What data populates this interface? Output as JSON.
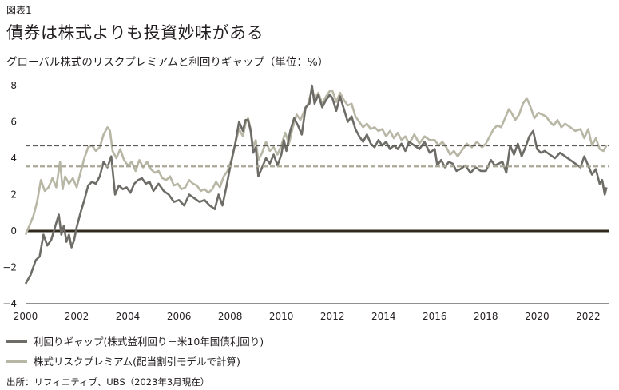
{
  "figure_label": "図表1",
  "title": "債券は株式よりも投資妙味がある",
  "subtitle": "グローバル株式のリスクプレミアムと利回りギャップ（単位：%）",
  "source": "出所：リフィニティブ、UBS（2023年3月現在）",
  "colors": {
    "gap": "#6e6c67",
    "erp": "#b8b6a4",
    "gap_avg": "#5e5c57",
    "erp_avg": "#a9a795",
    "zero": "#2f2a1c"
  },
  "chart_data": {
    "type": "line",
    "xlim": [
      2000,
      2022.8
    ],
    "ylim": [
      -4,
      8
    ],
    "x_ticks": [
      2000,
      2002,
      2004,
      2006,
      2008,
      2010,
      2012,
      2014,
      2016,
      2018,
      2020,
      2022
    ],
    "y_ticks": [
      -4,
      -2,
      0,
      2,
      4,
      6,
      8
    ],
    "y_tick_labels": [
      "−4",
      "−2",
      "0",
      "2",
      "4",
      "6",
      "8"
    ],
    "grid": false,
    "legend_position": "bottom-left",
    "reference_lines": [
      {
        "series": "利回りギャップ(株式益利回り－米10年国債利回り)",
        "value": 4.7,
        "style": "dashed"
      },
      {
        "series": "株式リスクプレミアム(配当割引モデルで計算)",
        "value": 3.55,
        "style": "dashed"
      },
      {
        "value": 0,
        "style": "solid"
      }
    ],
    "series": [
      {
        "name": "利回りギャップ(株式益利回り－米10年国債利回り)",
        "points": [
          [
            2000.0,
            -2.9
          ],
          [
            2000.2,
            -2.4
          ],
          [
            2000.4,
            -1.6
          ],
          [
            2000.55,
            -1.4
          ],
          [
            2000.7,
            -0.2
          ],
          [
            2000.85,
            -0.8
          ],
          [
            2001.0,
            -0.5
          ],
          [
            2001.15,
            0.2
          ],
          [
            2001.3,
            0.9
          ],
          [
            2001.4,
            -0.2
          ],
          [
            2001.5,
            0.3
          ],
          [
            2001.6,
            -0.6
          ],
          [
            2001.7,
            -0.2
          ],
          [
            2001.8,
            -0.9
          ],
          [
            2001.9,
            -0.5
          ],
          [
            2002.0,
            0.2
          ],
          [
            2002.15,
            1.0
          ],
          [
            2002.3,
            1.7
          ],
          [
            2002.45,
            2.5
          ],
          [
            2002.6,
            2.7
          ],
          [
            2002.75,
            2.6
          ],
          [
            2002.9,
            3.0
          ],
          [
            2003.05,
            3.8
          ],
          [
            2003.2,
            3.5
          ],
          [
            2003.35,
            4.1
          ],
          [
            2003.5,
            2.0
          ],
          [
            2003.65,
            2.5
          ],
          [
            2003.8,
            2.3
          ],
          [
            2003.95,
            2.4
          ],
          [
            2004.1,
            2.1
          ],
          [
            2004.25,
            2.6
          ],
          [
            2004.4,
            2.8
          ],
          [
            2004.55,
            2.9
          ],
          [
            2004.7,
            2.6
          ],
          [
            2004.85,
            2.7
          ],
          [
            2005.0,
            2.2
          ],
          [
            2005.2,
            2.6
          ],
          [
            2005.4,
            2.2
          ],
          [
            2005.6,
            2.0
          ],
          [
            2005.8,
            1.6
          ],
          [
            2006.0,
            1.7
          ],
          [
            2006.2,
            1.4
          ],
          [
            2006.4,
            2.0
          ],
          [
            2006.6,
            1.8
          ],
          [
            2006.8,
            1.6
          ],
          [
            2007.0,
            1.7
          ],
          [
            2007.2,
            1.4
          ],
          [
            2007.4,
            1.2
          ],
          [
            2007.55,
            2.0
          ],
          [
            2007.7,
            1.4
          ],
          [
            2007.85,
            2.4
          ],
          [
            2008.0,
            3.5
          ],
          [
            2008.2,
            4.8
          ],
          [
            2008.35,
            6.0
          ],
          [
            2008.5,
            5.5
          ],
          [
            2008.6,
            6.1
          ],
          [
            2008.7,
            6.1
          ],
          [
            2008.8,
            5.5
          ],
          [
            2008.9,
            4.3
          ],
          [
            2009.0,
            4.6
          ],
          [
            2009.1,
            3.0
          ],
          [
            2009.25,
            3.5
          ],
          [
            2009.4,
            4.0
          ],
          [
            2009.55,
            3.7
          ],
          [
            2009.7,
            4.2
          ],
          [
            2009.85,
            3.6
          ],
          [
            2010.0,
            4.2
          ],
          [
            2010.1,
            5.0
          ],
          [
            2010.2,
            4.4
          ],
          [
            2010.35,
            5.5
          ],
          [
            2010.5,
            6.2
          ],
          [
            2010.65,
            5.8
          ],
          [
            2010.8,
            5.3
          ],
          [
            2010.95,
            6.8
          ],
          [
            2011.1,
            7.0
          ],
          [
            2011.2,
            8.0
          ],
          [
            2011.3,
            7.0
          ],
          [
            2011.45,
            7.5
          ],
          [
            2011.6,
            6.8
          ],
          [
            2011.75,
            7.2
          ],
          [
            2011.9,
            7.5
          ],
          [
            2012.0,
            7.3
          ],
          [
            2012.15,
            6.6
          ],
          [
            2012.3,
            7.4
          ],
          [
            2012.45,
            6.7
          ],
          [
            2012.6,
            6.0
          ],
          [
            2012.75,
            6.3
          ],
          [
            2012.9,
            5.6
          ],
          [
            2013.05,
            5.2
          ],
          [
            2013.2,
            4.9
          ],
          [
            2013.35,
            5.3
          ],
          [
            2013.5,
            4.8
          ],
          [
            2013.65,
            4.6
          ],
          [
            2013.8,
            5.0
          ],
          [
            2013.95,
            4.7
          ],
          [
            2014.1,
            4.9
          ],
          [
            2014.25,
            4.5
          ],
          [
            2014.4,
            4.7
          ],
          [
            2014.55,
            4.5
          ],
          [
            2014.7,
            4.8
          ],
          [
            2014.85,
            4.4
          ],
          [
            2015.0,
            4.9
          ],
          [
            2015.2,
            4.7
          ],
          [
            2015.4,
            4.5
          ],
          [
            2015.6,
            4.9
          ],
          [
            2015.8,
            4.3
          ],
          [
            2016.0,
            4.5
          ],
          [
            2016.1,
            3.6
          ],
          [
            2016.25,
            3.9
          ],
          [
            2016.4,
            3.5
          ],
          [
            2016.55,
            3.8
          ],
          [
            2016.7,
            3.7
          ],
          [
            2016.85,
            3.3
          ],
          [
            2017.0,
            3.4
          ],
          [
            2017.2,
            3.6
          ],
          [
            2017.4,
            3.2
          ],
          [
            2017.6,
            3.5
          ],
          [
            2017.8,
            3.3
          ],
          [
            2018.0,
            3.3
          ],
          [
            2018.2,
            3.9
          ],
          [
            2018.35,
            3.6
          ],
          [
            2018.5,
            3.7
          ],
          [
            2018.65,
            3.8
          ],
          [
            2018.8,
            3.2
          ],
          [
            2018.95,
            4.7
          ],
          [
            2019.1,
            4.2
          ],
          [
            2019.25,
            4.8
          ],
          [
            2019.4,
            4.1
          ],
          [
            2019.55,
            4.6
          ],
          [
            2019.7,
            5.2
          ],
          [
            2019.85,
            5.5
          ],
          [
            2020.0,
            4.5
          ],
          [
            2020.15,
            4.3
          ],
          [
            2020.3,
            4.4
          ],
          [
            2020.5,
            4.2
          ],
          [
            2020.7,
            4.0
          ],
          [
            2020.9,
            4.3
          ],
          [
            2021.1,
            4.1
          ],
          [
            2021.3,
            3.9
          ],
          [
            2021.5,
            3.7
          ],
          [
            2021.7,
            3.5
          ],
          [
            2021.85,
            4.1
          ],
          [
            2022.0,
            3.6
          ],
          [
            2022.15,
            3.1
          ],
          [
            2022.3,
            3.4
          ],
          [
            2022.45,
            2.6
          ],
          [
            2022.55,
            2.8
          ],
          [
            2022.65,
            2.0
          ],
          [
            2022.72,
            2.4
          ]
        ]
      },
      {
        "name": "株式リスクプレミアム(配当割引モデルで計算)",
        "points": [
          [
            2000.0,
            -0.2
          ],
          [
            2000.15,
            0.3
          ],
          [
            2000.3,
            0.8
          ],
          [
            2000.45,
            1.6
          ],
          [
            2000.6,
            2.8
          ],
          [
            2000.75,
            2.2
          ],
          [
            2000.9,
            2.4
          ],
          [
            2001.05,
            2.9
          ],
          [
            2001.2,
            2.4
          ],
          [
            2001.35,
            3.8
          ],
          [
            2001.45,
            2.3
          ],
          [
            2001.55,
            3.0
          ],
          [
            2001.7,
            2.6
          ],
          [
            2001.85,
            2.9
          ],
          [
            2002.0,
            2.4
          ],
          [
            2002.15,
            3.2
          ],
          [
            2002.3,
            4.0
          ],
          [
            2002.45,
            4.6
          ],
          [
            2002.6,
            4.7
          ],
          [
            2002.75,
            4.4
          ],
          [
            2002.9,
            4.6
          ],
          [
            2003.05,
            5.3
          ],
          [
            2003.2,
            5.7
          ],
          [
            2003.3,
            5.5
          ],
          [
            2003.4,
            4.4
          ],
          [
            2003.55,
            4.0
          ],
          [
            2003.7,
            4.5
          ],
          [
            2003.85,
            3.9
          ],
          [
            2004.0,
            3.6
          ],
          [
            2004.15,
            3.8
          ],
          [
            2004.3,
            3.3
          ],
          [
            2004.45,
            3.9
          ],
          [
            2004.6,
            3.5
          ],
          [
            2004.75,
            3.8
          ],
          [
            2004.9,
            3.4
          ],
          [
            2005.05,
            3.2
          ],
          [
            2005.2,
            3.3
          ],
          [
            2005.35,
            2.9
          ],
          [
            2005.5,
            2.8
          ],
          [
            2005.65,
            3.0
          ],
          [
            2005.8,
            2.5
          ],
          [
            2005.95,
            2.6
          ],
          [
            2006.1,
            2.3
          ],
          [
            2006.25,
            2.4
          ],
          [
            2006.4,
            2.8
          ],
          [
            2006.55,
            2.6
          ],
          [
            2006.7,
            2.5
          ],
          [
            2006.85,
            2.2
          ],
          [
            2007.0,
            2.3
          ],
          [
            2007.15,
            2.1
          ],
          [
            2007.3,
            2.3
          ],
          [
            2007.45,
            2.7
          ],
          [
            2007.6,
            2.4
          ],
          [
            2007.75,
            3.0
          ],
          [
            2007.9,
            3.3
          ],
          [
            2008.05,
            3.9
          ],
          [
            2008.2,
            4.8
          ],
          [
            2008.35,
            5.6
          ],
          [
            2008.5,
            5.2
          ],
          [
            2008.6,
            5.9
          ],
          [
            2008.7,
            6.2
          ],
          [
            2008.8,
            5.6
          ],
          [
            2008.9,
            4.6
          ],
          [
            2009.0,
            5.0
          ],
          [
            2009.1,
            3.9
          ],
          [
            2009.25,
            4.3
          ],
          [
            2009.4,
            4.9
          ],
          [
            2009.55,
            4.4
          ],
          [
            2009.7,
            4.6
          ],
          [
            2009.85,
            4.2
          ],
          [
            2010.0,
            4.7
          ],
          [
            2010.15,
            5.4
          ],
          [
            2010.3,
            4.8
          ],
          [
            2010.45,
            5.7
          ],
          [
            2010.6,
            6.4
          ],
          [
            2010.75,
            6.1
          ],
          [
            2010.9,
            6.6
          ],
          [
            2011.05,
            7.0
          ],
          [
            2011.2,
            7.8
          ],
          [
            2011.3,
            7.3
          ],
          [
            2011.45,
            7.6
          ],
          [
            2011.6,
            7.0
          ],
          [
            2011.75,
            7.4
          ],
          [
            2011.9,
            7.7
          ],
          [
            2012.0,
            7.7
          ],
          [
            2012.15,
            7.1
          ],
          [
            2012.3,
            7.6
          ],
          [
            2012.45,
            7.2
          ],
          [
            2012.6,
            6.9
          ],
          [
            2012.75,
            7.0
          ],
          [
            2012.9,
            6.3
          ],
          [
            2013.05,
            6.0
          ],
          [
            2013.2,
            5.7
          ],
          [
            2013.35,
            5.9
          ],
          [
            2013.5,
            5.6
          ],
          [
            2013.65,
            5.7
          ],
          [
            2013.8,
            5.5
          ],
          [
            2013.95,
            5.6
          ],
          [
            2014.1,
            5.2
          ],
          [
            2014.25,
            5.5
          ],
          [
            2014.4,
            5.1
          ],
          [
            2014.55,
            5.4
          ],
          [
            2014.7,
            5.0
          ],
          [
            2014.85,
            5.2
          ],
          [
            2015.0,
            4.8
          ],
          [
            2015.2,
            5.3
          ],
          [
            2015.4,
            4.8
          ],
          [
            2015.6,
            5.2
          ],
          [
            2015.8,
            5.0
          ],
          [
            2016.0,
            5.0
          ],
          [
            2016.15,
            4.7
          ],
          [
            2016.3,
            4.9
          ],
          [
            2016.45,
            4.6
          ],
          [
            2016.6,
            4.2
          ],
          [
            2016.75,
            4.4
          ],
          [
            2016.9,
            4.1
          ],
          [
            2017.05,
            4.4
          ],
          [
            2017.25,
            4.8
          ],
          [
            2017.45,
            4.6
          ],
          [
            2017.65,
            4.9
          ],
          [
            2017.85,
            4.6
          ],
          [
            2018.0,
            4.8
          ],
          [
            2018.15,
            5.2
          ],
          [
            2018.3,
            5.6
          ],
          [
            2018.45,
            5.8
          ],
          [
            2018.6,
            5.7
          ],
          [
            2018.75,
            6.2
          ],
          [
            2018.9,
            6.7
          ],
          [
            2019.0,
            6.5
          ],
          [
            2019.15,
            6.1
          ],
          [
            2019.3,
            6.4
          ],
          [
            2019.45,
            7.0
          ],
          [
            2019.6,
            7.3
          ],
          [
            2019.75,
            6.8
          ],
          [
            2019.9,
            6.2
          ],
          [
            2020.05,
            6.5
          ],
          [
            2020.2,
            6.4
          ],
          [
            2020.35,
            6.3
          ],
          [
            2020.5,
            6.0
          ],
          [
            2020.65,
            5.8
          ],
          [
            2020.8,
            6.1
          ],
          [
            2020.95,
            5.7
          ],
          [
            2021.1,
            5.9
          ],
          [
            2021.3,
            5.7
          ],
          [
            2021.5,
            5.5
          ],
          [
            2021.7,
            5.6
          ],
          [
            2021.85,
            5.1
          ],
          [
            2022.0,
            5.6
          ],
          [
            2022.15,
            4.7
          ],
          [
            2022.3,
            5.1
          ],
          [
            2022.45,
            4.5
          ],
          [
            2022.6,
            4.4
          ],
          [
            2022.72,
            4.7
          ]
        ]
      }
    ]
  }
}
